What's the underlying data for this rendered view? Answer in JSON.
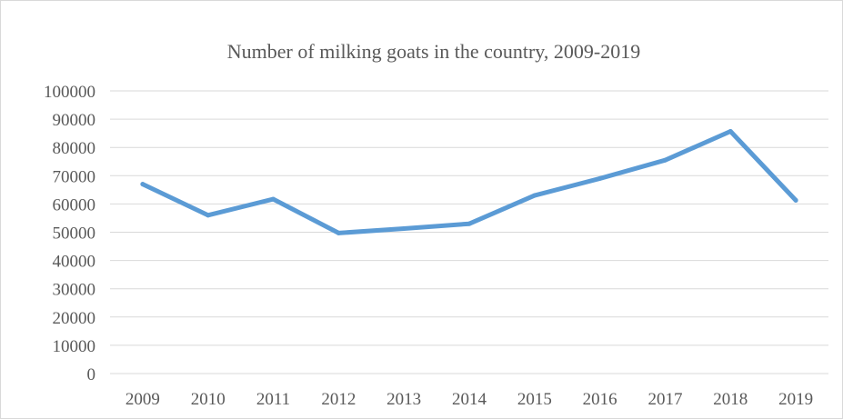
{
  "chart_data": {
    "type": "line",
    "title": "Number of milking  goats in the country, 2009-2019",
    "xlabel": "",
    "ylabel": "",
    "categories": [
      "2009",
      "2010",
      "2011",
      "2012",
      "2013",
      "2014",
      "2015",
      "2016",
      "2017",
      "2018",
      "2019"
    ],
    "y_ticks": [
      "0",
      "10000",
      "20000",
      "30000",
      "40000",
      "50000",
      "60000",
      "70000",
      "80000",
      "90000",
      "100000"
    ],
    "ylim": [
      0,
      100000
    ],
    "grid": true,
    "legend": "none",
    "series": [
      {
        "values": [
          67000,
          56000,
          61700,
          49700,
          51300,
          53000,
          63000,
          69000,
          75500,
          85700,
          61300
        ],
        "color": "#5b9bd5"
      }
    ]
  }
}
